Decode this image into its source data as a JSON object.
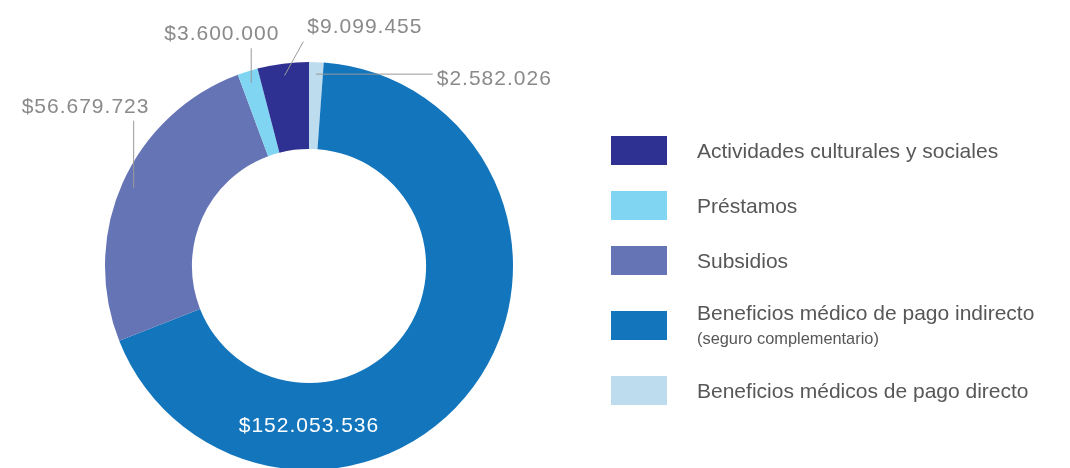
{
  "chart_data": {
    "type": "donut",
    "categories": [
      "Actividades culturales y sociales",
      "Préstamos",
      "Subsidios",
      "Beneficios médico de pago indirecto (seguro complementario)",
      "Beneficios médicos de pago directo"
    ],
    "values": [
      9099455,
      3600000,
      56679723,
      152053536,
      2582026
    ],
    "colors": [
      "#2e3192",
      "#80d5f2",
      "#6574b4",
      "#1375bc",
      "#bddcee"
    ],
    "value_labels": [
      "$9.099.455",
      "$3.600.000",
      "$56.679.723",
      "$152.053.536",
      "$2.582.026"
    ],
    "legend": "right"
  }
}
